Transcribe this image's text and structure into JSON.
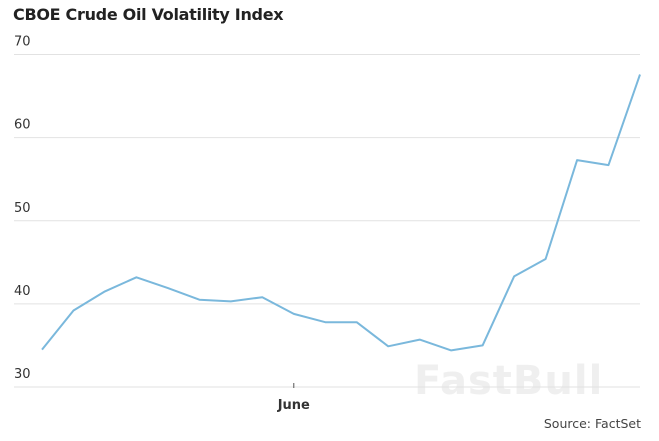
{
  "chart_data": {
    "type": "line",
    "title": "CBOE Crude Oil Volatility Index",
    "xlabel": "",
    "ylabel": "",
    "x_ticks": [
      {
        "index": 8,
        "label": "June"
      }
    ],
    "y_ticks": [
      30,
      40,
      50,
      60,
      70
    ],
    "ylim": [
      30,
      70
    ],
    "grid": "horizontal",
    "legend": "none",
    "series": [
      {
        "name": "CBOE Crude Oil Volatility Index",
        "color": "#7ab8dc",
        "values": [
          34.5,
          39.2,
          41.5,
          43.2,
          41.9,
          40.5,
          40.3,
          40.8,
          38.8,
          37.8,
          37.8,
          34.9,
          35.7,
          34.4,
          35.0,
          43.3,
          45.4,
          57.3,
          56.7,
          67.6
        ]
      }
    ],
    "source": "Source: FactSet",
    "watermark": "FastBull"
  }
}
